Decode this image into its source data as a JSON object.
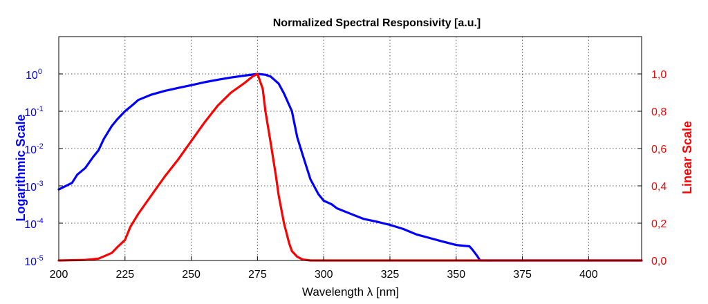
{
  "chart_data": {
    "type": "line",
    "title": "Normalized Spectral Responsivity [a.u.]",
    "xlabel": "Wavelength λ [nm]",
    "ylabel_left": "Logarithmic Scale",
    "ylabel_right": "Linear Scale",
    "xlim": [
      200,
      420
    ],
    "x_ticks": [
      "200",
      "225",
      "250",
      "275",
      "300",
      "325",
      "350",
      "375",
      "400"
    ],
    "y_left": {
      "scale": "log",
      "lim": [
        1e-05,
        10
      ],
      "ticks": [
        {
          "base": "10",
          "exp": "0",
          "value": 1
        },
        {
          "base": "10",
          "exp": "-1",
          "value": 0.1
        },
        {
          "base": "10",
          "exp": "-2",
          "value": 0.01
        },
        {
          "base": "10",
          "exp": "-3",
          "value": 0.001
        },
        {
          "base": "10",
          "exp": "-4",
          "value": 0.0001
        },
        {
          "base": "10",
          "exp": "-5",
          "value": 1e-05
        }
      ]
    },
    "y_right": {
      "scale": "linear",
      "lim": [
        0,
        1.2
      ],
      "ticks": [
        {
          "label": "1,0",
          "value": 1.0
        },
        {
          "label": "0,8",
          "value": 0.8
        },
        {
          "label": "0,6",
          "value": 0.6
        },
        {
          "label": "0,4",
          "value": 0.4
        },
        {
          "label": "0,2",
          "value": 0.2
        },
        {
          "label": "0,0",
          "value": 0.0
        }
      ]
    },
    "grid": true,
    "colors": {
      "log": "#0000ff",
      "linear": "#ff0000",
      "axis": "#000000"
    },
    "series": [
      {
        "axis": "left",
        "color": "#0000ff",
        "x": [
          200,
          205,
          207,
          210,
          213,
          215,
          217,
          220,
          222,
          225,
          228,
          230,
          235,
          240,
          245,
          250,
          255,
          260,
          265,
          270,
          275,
          278,
          280,
          283,
          285,
          288,
          290,
          292,
          295,
          298,
          300,
          303,
          305,
          310,
          315,
          320,
          325,
          330,
          335,
          340,
          345,
          350,
          355,
          356,
          358,
          359,
          360,
          380,
          420
        ],
        "y": [
          0.0008,
          0.0012,
          0.002,
          0.003,
          0.006,
          0.009,
          0.018,
          0.04,
          0.06,
          0.1,
          0.15,
          0.2,
          0.28,
          0.35,
          0.42,
          0.5,
          0.6,
          0.7,
          0.8,
          0.9,
          1.0,
          0.95,
          0.85,
          0.55,
          0.3,
          0.1,
          0.02,
          0.007,
          0.0015,
          0.0006,
          0.0004,
          0.00032,
          0.00025,
          0.00018,
          0.00013,
          0.00011,
          9e-05,
          7e-05,
          5e-05,
          4e-05,
          3.2e-05,
          2.6e-05,
          2.4e-05,
          2e-05,
          1.3e-05,
          1e-05,
          1e-05,
          1e-05,
          1e-05
        ]
      },
      {
        "axis": "right",
        "color": "#ff0000",
        "x": [
          200,
          210,
          215,
          220,
          222,
          225,
          227,
          230,
          235,
          240,
          245,
          250,
          255,
          260,
          265,
          270,
          273,
          275,
          277,
          278,
          280,
          282,
          283,
          285,
          287,
          288,
          290,
          292,
          295,
          300,
          420
        ],
        "y": [
          0,
          0.003,
          0.01,
          0.04,
          0.07,
          0.11,
          0.18,
          0.25,
          0.35,
          0.45,
          0.54,
          0.64,
          0.74,
          0.83,
          0.9,
          0.95,
          0.985,
          1.0,
          0.92,
          0.8,
          0.63,
          0.45,
          0.35,
          0.2,
          0.09,
          0.05,
          0.02,
          0.005,
          0.0,
          0.0,
          0.0
        ]
      }
    ]
  }
}
